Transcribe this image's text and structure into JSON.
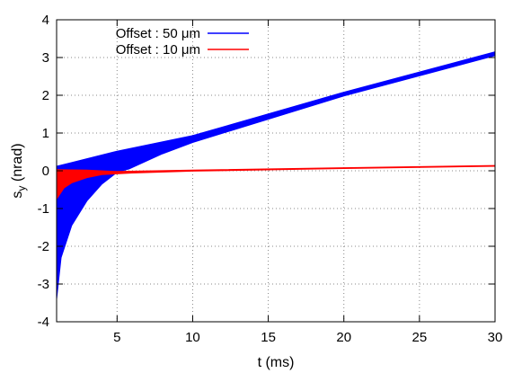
{
  "chart_data": {
    "type": "area",
    "xlabel": "t (ms)",
    "ylabel_main": "s",
    "ylabel_sub": "y",
    "ylabel_unit": " (nrad)",
    "xlim": [
      1,
      30
    ],
    "ylim": [
      -4,
      4
    ],
    "xticks": [
      5,
      10,
      15,
      20,
      25,
      30
    ],
    "yticks": [
      -4,
      -3,
      -2,
      -1,
      0,
      1,
      2,
      3,
      4
    ],
    "grid": true,
    "legend_position": "top-left",
    "series": [
      {
        "name": "Offset : 50 μm",
        "color": "#0000ff",
        "upper": [
          [
            1,
            0.12
          ],
          [
            2,
            0.22
          ],
          [
            5,
            0.52
          ],
          [
            10,
            0.93
          ],
          [
            20,
            2.08
          ],
          [
            30,
            3.15
          ]
        ],
        "lower": [
          [
            1,
            -3.4
          ],
          [
            1.3,
            -2.3
          ],
          [
            2,
            -1.45
          ],
          [
            3,
            -0.8
          ],
          [
            4,
            -0.35
          ],
          [
            5,
            -0.04
          ],
          [
            5.8,
            0.05
          ],
          [
            8,
            0.45
          ],
          [
            10,
            0.75
          ],
          [
            20,
            1.98
          ],
          [
            30,
            3.05
          ]
        ]
      },
      {
        "name": "Offset : 10 μm",
        "color": "#ff0000",
        "upper": [
          [
            1,
            0.03
          ],
          [
            3,
            0.02
          ],
          [
            5,
            -0.02
          ],
          [
            10,
            0.02
          ],
          [
            20,
            0.08
          ],
          [
            30,
            0.14
          ]
        ],
        "lower": [
          [
            1,
            -0.75
          ],
          [
            1.5,
            -0.45
          ],
          [
            2,
            -0.32
          ],
          [
            3,
            -0.18
          ],
          [
            4,
            -0.1
          ],
          [
            5,
            -0.08
          ],
          [
            6,
            -0.06
          ],
          [
            10,
            -0.01
          ],
          [
            20,
            0.06
          ],
          [
            30,
            0.12
          ]
        ]
      }
    ]
  }
}
